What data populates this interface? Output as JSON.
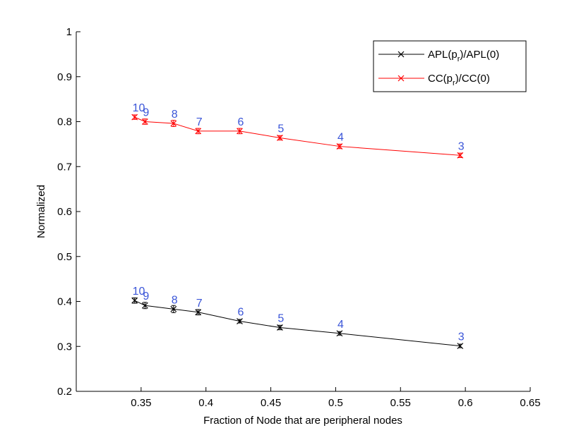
{
  "chart_data": {
    "type": "line",
    "title": "",
    "xlabel": "Fraction of Node that are peripheral nodes",
    "ylabel": "Normalized",
    "xlim": [
      0.3,
      0.65
    ],
    "ylim": [
      0.2,
      1.0
    ],
    "xticks": [
      0.35,
      0.4,
      0.45,
      0.5,
      0.55,
      0.6,
      0.65
    ],
    "xtick_labels": [
      "0.35",
      "0.4",
      "0.45",
      "0.5",
      "0.55",
      "0.6",
      "0.65"
    ],
    "yticks": [
      0.2,
      0.3,
      0.4,
      0.5,
      0.6,
      0.7,
      0.8,
      0.9,
      1.0
    ],
    "ytick_labels": [
      "0.2",
      "0.3",
      "0.4",
      "0.5",
      "0.6",
      "0.7",
      "0.8",
      "0.9",
      "1"
    ],
    "grid": false,
    "legend_position": "top-right",
    "point_labels": [
      "10",
      "9",
      "8",
      "7",
      "6",
      "5",
      "4",
      "3"
    ],
    "point_label_color": "#3a55d8",
    "series": [
      {
        "name_main": "APL(p",
        "name_sub": "r",
        "name_tail": ")/APL(0)",
        "color": "#000000",
        "x": [
          0.345,
          0.353,
          0.375,
          0.394,
          0.426,
          0.457,
          0.503,
          0.596
        ],
        "y": [
          0.402,
          0.391,
          0.383,
          0.376,
          0.356,
          0.342,
          0.329,
          0.301
        ],
        "err": [
          0.006,
          0.007,
          0.008,
          0.006,
          0.004,
          0.005,
          0.004,
          0.004
        ]
      },
      {
        "name_main": "CC(p",
        "name_sub": "r",
        "name_tail": ")/CC(0)",
        "color": "#ff0000",
        "x": [
          0.345,
          0.353,
          0.375,
          0.394,
          0.426,
          0.457,
          0.503,
          0.596
        ],
        "y": [
          0.81,
          0.8,
          0.796,
          0.779,
          0.779,
          0.764,
          0.745,
          0.725
        ],
        "err": [
          0.005,
          0.006,
          0.007,
          0.006,
          0.006,
          0.005,
          0.005,
          0.005
        ]
      }
    ]
  }
}
